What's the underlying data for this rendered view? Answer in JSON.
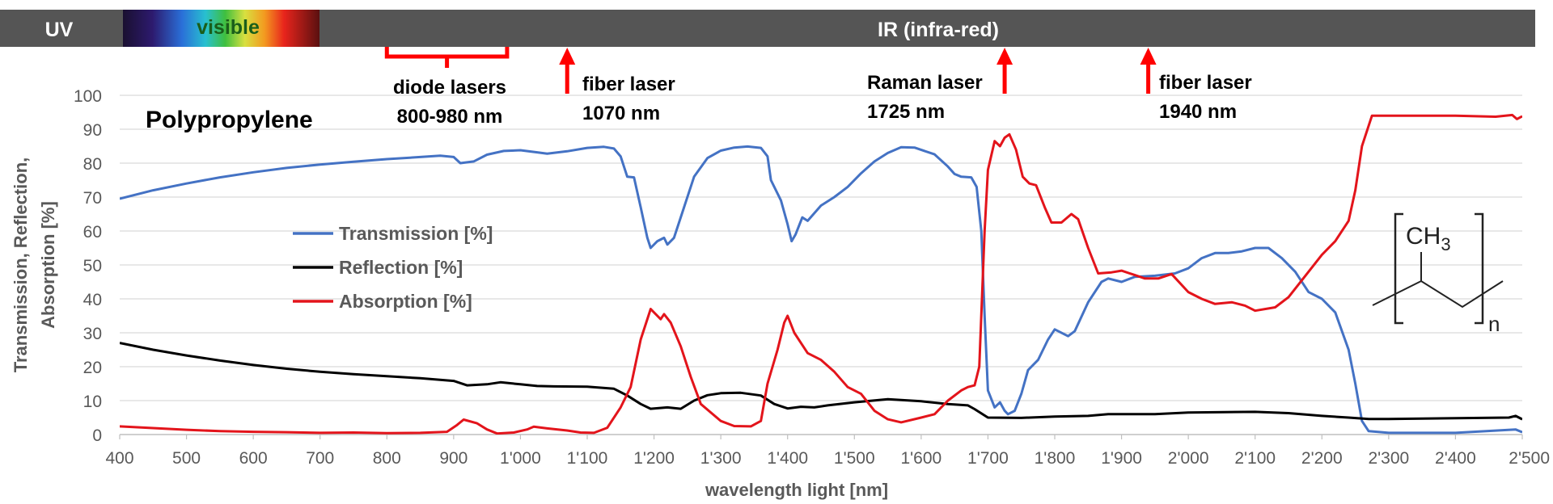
{
  "spectrum_bar": {
    "uv_label": "UV",
    "visible_label": "visible",
    "ir_label": "IR (infra-red)",
    "bar_color": "#555555",
    "label_color": "#ffffff",
    "visible_text_color": "#1a5e1a"
  },
  "annotations": {
    "diode": {
      "line1": "diode lasers",
      "line2": "800-980 nm",
      "range": [
        800,
        980
      ]
    },
    "fiber1": {
      "line1": "fiber laser",
      "line2": "1070 nm",
      "x": 1070
    },
    "raman": {
      "line1": "Raman laser",
      "line2": "1725 nm",
      "x": 1725
    },
    "fiber2": {
      "line1": "fiber laser",
      "line2": "1940 nm",
      "x": 1940
    },
    "marker_color": "#ff0000"
  },
  "molecule": {
    "group": "CH",
    "subscript": "3",
    "repeat": "n"
  },
  "chart_data": {
    "type": "line",
    "title": "Polypropylene",
    "xlabel": "wavelength light [nm]",
    "ylabel_lines": [
      "Transmission, Reflection,",
      "Absorption [%]"
    ],
    "xlim": [
      400,
      2500
    ],
    "ylim": [
      0,
      100
    ],
    "x_ticks": [
      400,
      500,
      600,
      700,
      800,
      900,
      1000,
      1100,
      1200,
      1300,
      1400,
      1500,
      1600,
      1700,
      1800,
      1900,
      2000,
      2100,
      2200,
      2300,
      2400,
      2500
    ],
    "x_tick_labels": [
      "400",
      "500",
      "600",
      "700",
      "800",
      "900",
      "1'000",
      "1'100",
      "1'200",
      "1'300",
      "1'400",
      "1'500",
      "1'600",
      "1'700",
      "1'800",
      "1'900",
      "2'000",
      "2'100",
      "2'200",
      "2'300",
      "2'400",
      "2'500"
    ],
    "y_ticks": [
      0,
      10,
      20,
      30,
      40,
      50,
      60,
      70,
      80,
      90,
      100
    ],
    "y_tick_labels": [
      "0",
      "10",
      "20",
      "30",
      "40",
      "50",
      "60",
      "70",
      "80",
      "90",
      "100"
    ],
    "grid": "horizontal",
    "legend_position": "center-left",
    "series": [
      {
        "name": "Transmission [%]",
        "color": "#4472c4",
        "points": [
          [
            400,
            69.5
          ],
          [
            450,
            72
          ],
          [
            500,
            74
          ],
          [
            550,
            75.8
          ],
          [
            600,
            77.3
          ],
          [
            650,
            78.6
          ],
          [
            700,
            79.6
          ],
          [
            750,
            80.4
          ],
          [
            800,
            81.2
          ],
          [
            850,
            81.8
          ],
          [
            880,
            82.2
          ],
          [
            900,
            81.8
          ],
          [
            910,
            80
          ],
          [
            930,
            80.5
          ],
          [
            950,
            82.5
          ],
          [
            975,
            83.6
          ],
          [
            1000,
            83.8
          ],
          [
            1025,
            83.2
          ],
          [
            1040,
            82.8
          ],
          [
            1070,
            83.5
          ],
          [
            1100,
            84.5
          ],
          [
            1125,
            84.8
          ],
          [
            1140,
            84.3
          ],
          [
            1150,
            82
          ],
          [
            1160,
            76
          ],
          [
            1170,
            75.8
          ],
          [
            1180,
            67
          ],
          [
            1190,
            58
          ],
          [
            1195,
            55
          ],
          [
            1205,
            57
          ],
          [
            1215,
            58
          ],
          [
            1220,
            56
          ],
          [
            1230,
            58
          ],
          [
            1245,
            67
          ],
          [
            1260,
            76
          ],
          [
            1280,
            81.5
          ],
          [
            1300,
            83.7
          ],
          [
            1320,
            84.6
          ],
          [
            1340,
            84.9
          ],
          [
            1360,
            84.5
          ],
          [
            1370,
            82
          ],
          [
            1375,
            75
          ],
          [
            1390,
            69
          ],
          [
            1400,
            62
          ],
          [
            1406,
            57
          ],
          [
            1412,
            59
          ],
          [
            1422,
            64
          ],
          [
            1430,
            63
          ],
          [
            1450,
            67.5
          ],
          [
            1470,
            70
          ],
          [
            1490,
            73
          ],
          [
            1510,
            77
          ],
          [
            1530,
            80.5
          ],
          [
            1550,
            83
          ],
          [
            1570,
            84.7
          ],
          [
            1590,
            84.6
          ],
          [
            1620,
            82.6
          ],
          [
            1640,
            79
          ],
          [
            1650,
            76.8
          ],
          [
            1660,
            76
          ],
          [
            1675,
            75.8
          ],
          [
            1683,
            73
          ],
          [
            1690,
            60
          ],
          [
            1695,
            35
          ],
          [
            1700,
            13
          ],
          [
            1710,
            8
          ],
          [
            1718,
            9.5
          ],
          [
            1725,
            7
          ],
          [
            1730,
            6
          ],
          [
            1740,
            7
          ],
          [
            1750,
            12
          ],
          [
            1760,
            19
          ],
          [
            1775,
            22
          ],
          [
            1790,
            28
          ],
          [
            1800,
            31
          ],
          [
            1820,
            29
          ],
          [
            1830,
            30.5
          ],
          [
            1850,
            39
          ],
          [
            1870,
            45
          ],
          [
            1880,
            46
          ],
          [
            1900,
            45
          ],
          [
            1920,
            46.5
          ],
          [
            1950,
            46.8
          ],
          [
            1980,
            47.5
          ],
          [
            2000,
            49
          ],
          [
            2020,
            52
          ],
          [
            2040,
            53.5
          ],
          [
            2060,
            53.5
          ],
          [
            2080,
            54
          ],
          [
            2100,
            55
          ],
          [
            2120,
            55
          ],
          [
            2140,
            52
          ],
          [
            2160,
            48
          ],
          [
            2180,
            42
          ],
          [
            2200,
            40
          ],
          [
            2220,
            36
          ],
          [
            2240,
            25
          ],
          [
            2250,
            15
          ],
          [
            2260,
            4
          ],
          [
            2270,
            1
          ],
          [
            2300,
            0.5
          ],
          [
            2400,
            0.5
          ],
          [
            2490,
            1.5
          ],
          [
            2500,
            0.7
          ]
        ]
      },
      {
        "name": "Reflection [%]",
        "color": "#000000",
        "points": [
          [
            400,
            27
          ],
          [
            450,
            25
          ],
          [
            500,
            23.3
          ],
          [
            550,
            21.8
          ],
          [
            600,
            20.5
          ],
          [
            650,
            19.4
          ],
          [
            700,
            18.5
          ],
          [
            750,
            17.8
          ],
          [
            800,
            17.2
          ],
          [
            850,
            16.6
          ],
          [
            900,
            15.8
          ],
          [
            920,
            14.5
          ],
          [
            950,
            14.8
          ],
          [
            970,
            15.4
          ],
          [
            1000,
            14.8
          ],
          [
            1025,
            14.3
          ],
          [
            1050,
            14.2
          ],
          [
            1100,
            14.1
          ],
          [
            1140,
            13.5
          ],
          [
            1160,
            11.5
          ],
          [
            1180,
            9
          ],
          [
            1195,
            7.6
          ],
          [
            1220,
            8
          ],
          [
            1240,
            7.6
          ],
          [
            1260,
            10
          ],
          [
            1280,
            11.6
          ],
          [
            1300,
            12.2
          ],
          [
            1330,
            12.3
          ],
          [
            1360,
            11.5
          ],
          [
            1380,
            9
          ],
          [
            1400,
            7.7
          ],
          [
            1420,
            8.2
          ],
          [
            1440,
            8
          ],
          [
            1460,
            8.6
          ],
          [
            1500,
            9.5
          ],
          [
            1550,
            10.4
          ],
          [
            1600,
            9.8
          ],
          [
            1640,
            9
          ],
          [
            1670,
            8.6
          ],
          [
            1680,
            7.5
          ],
          [
            1700,
            5
          ],
          [
            1750,
            4.9
          ],
          [
            1800,
            5.3
          ],
          [
            1850,
            5.5
          ],
          [
            1880,
            6
          ],
          [
            1950,
            6
          ],
          [
            2000,
            6.5
          ],
          [
            2100,
            6.7
          ],
          [
            2150,
            6.3
          ],
          [
            2200,
            5.5
          ],
          [
            2240,
            5
          ],
          [
            2270,
            4.6
          ],
          [
            2300,
            4.6
          ],
          [
            2400,
            4.8
          ],
          [
            2480,
            5
          ],
          [
            2490,
            5.5
          ],
          [
            2500,
            4.5
          ]
        ]
      },
      {
        "name": "Absorption [%]",
        "color": "#e3141b",
        "points": [
          [
            400,
            2.4
          ],
          [
            450,
            1.9
          ],
          [
            500,
            1.4
          ],
          [
            550,
            1
          ],
          [
            600,
            0.8
          ],
          [
            650,
            0.7
          ],
          [
            700,
            0.5
          ],
          [
            750,
            0.6
          ],
          [
            800,
            0.4
          ],
          [
            850,
            0.5
          ],
          [
            890,
            0.8
          ],
          [
            905,
            2.8
          ],
          [
            915,
            4.4
          ],
          [
            935,
            3.3
          ],
          [
            950,
            1.5
          ],
          [
            965,
            0.3
          ],
          [
            990,
            0.6
          ],
          [
            1010,
            1.5
          ],
          [
            1020,
            2.3
          ],
          [
            1040,
            1.8
          ],
          [
            1070,
            1.2
          ],
          [
            1090,
            0.6
          ],
          [
            1110,
            0.5
          ],
          [
            1130,
            2
          ],
          [
            1150,
            8
          ],
          [
            1165,
            14
          ],
          [
            1180,
            28
          ],
          [
            1195,
            37
          ],
          [
            1210,
            34
          ],
          [
            1215,
            35.5
          ],
          [
            1225,
            33
          ],
          [
            1240,
            26
          ],
          [
            1255,
            17
          ],
          [
            1270,
            9
          ],
          [
            1300,
            4
          ],
          [
            1320,
            2.5
          ],
          [
            1345,
            2.4
          ],
          [
            1360,
            4
          ],
          [
            1370,
            15
          ],
          [
            1385,
            25
          ],
          [
            1395,
            33
          ],
          [
            1400,
            35
          ],
          [
            1410,
            30
          ],
          [
            1420,
            27
          ],
          [
            1430,
            24
          ],
          [
            1450,
            22
          ],
          [
            1470,
            18.5
          ],
          [
            1490,
            14
          ],
          [
            1510,
            12
          ],
          [
            1530,
            7
          ],
          [
            1550,
            4.5
          ],
          [
            1570,
            3.6
          ],
          [
            1600,
            5
          ],
          [
            1620,
            6
          ],
          [
            1640,
            10
          ],
          [
            1660,
            13
          ],
          [
            1670,
            14
          ],
          [
            1680,
            14.5
          ],
          [
            1687,
            20
          ],
          [
            1695,
            60
          ],
          [
            1700,
            78
          ],
          [
            1710,
            86.5
          ],
          [
            1718,
            85
          ],
          [
            1725,
            87.5
          ],
          [
            1732,
            88.5
          ],
          [
            1742,
            84
          ],
          [
            1752,
            76
          ],
          [
            1762,
            74
          ],
          [
            1772,
            73.5
          ],
          [
            1785,
            67
          ],
          [
            1795,
            62.5
          ],
          [
            1810,
            62.5
          ],
          [
            1825,
            65
          ],
          [
            1835,
            63.5
          ],
          [
            1850,
            55
          ],
          [
            1865,
            47.5
          ],
          [
            1885,
            47.8
          ],
          [
            1900,
            48.3
          ],
          [
            1920,
            47
          ],
          [
            1935,
            46
          ],
          [
            1955,
            46
          ],
          [
            1975,
            47.3
          ],
          [
            2000,
            42
          ],
          [
            2020,
            40
          ],
          [
            2040,
            38.5
          ],
          [
            2065,
            39
          ],
          [
            2085,
            38
          ],
          [
            2100,
            36.5
          ],
          [
            2130,
            37.5
          ],
          [
            2150,
            40.5
          ],
          [
            2180,
            48
          ],
          [
            2200,
            53
          ],
          [
            2220,
            57
          ],
          [
            2240,
            63
          ],
          [
            2250,
            72
          ],
          [
            2260,
            85
          ],
          [
            2275,
            94
          ],
          [
            2300,
            94
          ],
          [
            2350,
            94
          ],
          [
            2400,
            94
          ],
          [
            2460,
            93.7
          ],
          [
            2485,
            94.2
          ],
          [
            2492,
            93
          ],
          [
            2500,
            93.8
          ]
        ]
      }
    ]
  }
}
